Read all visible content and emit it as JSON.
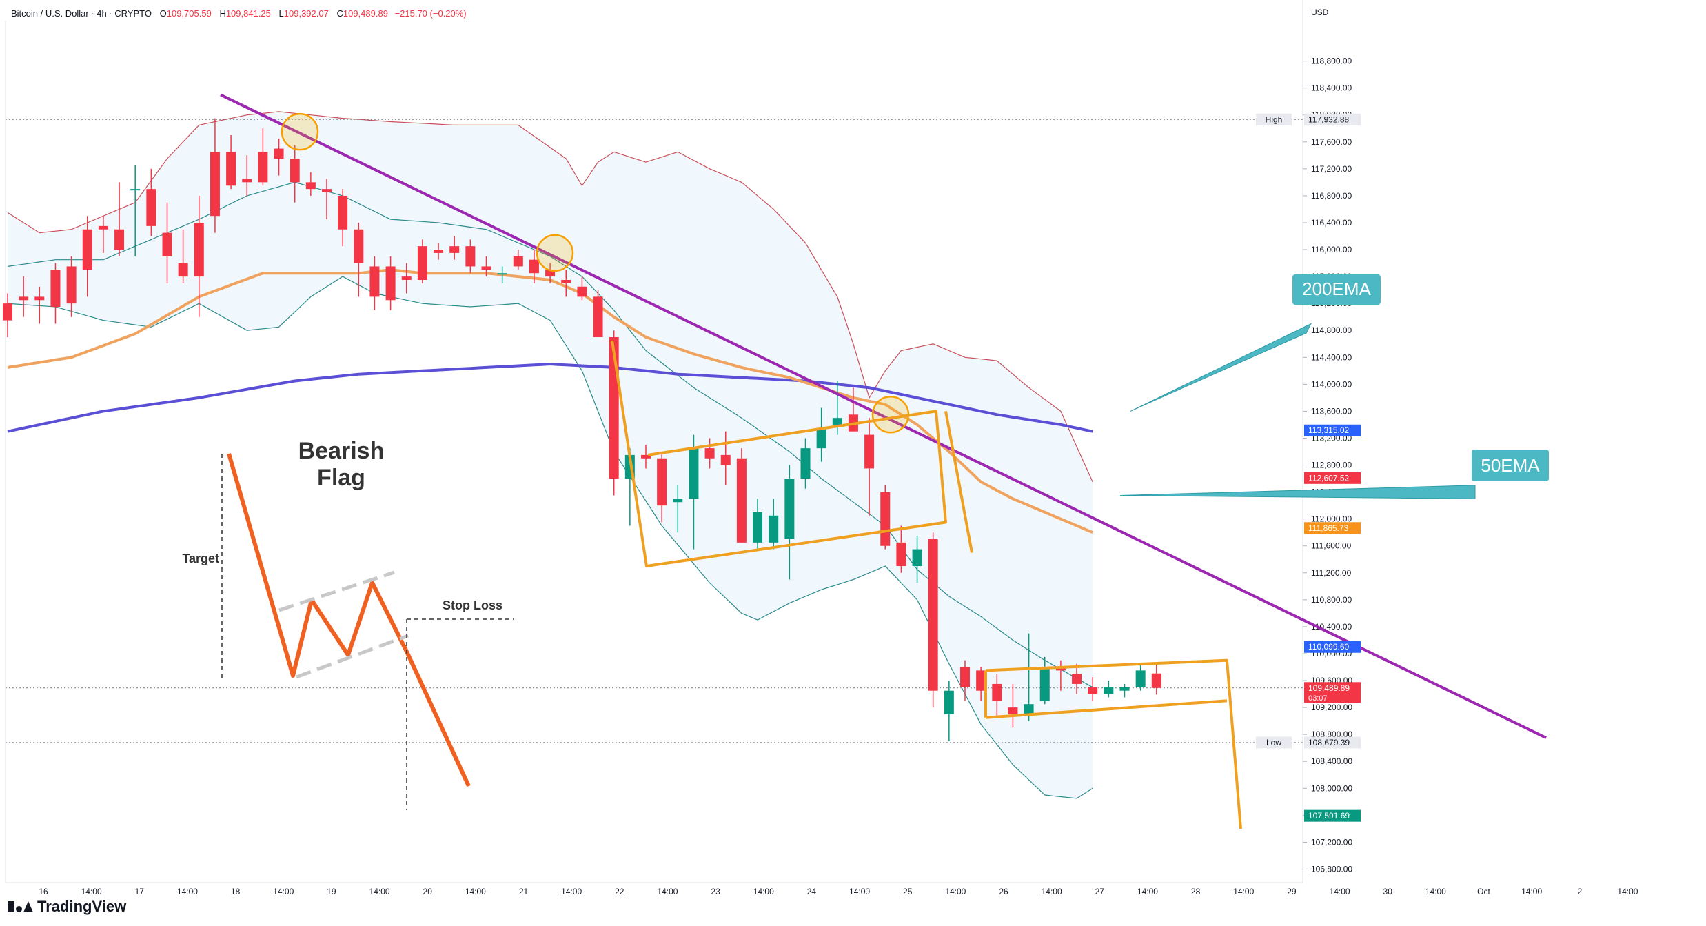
{
  "header": {
    "symbol": "Bitcoin / U.S. Dollar · 4h · CRYPTO",
    "o_label": "O",
    "o_value": "109,705.59",
    "h_label": "H",
    "h_value": "109,841.25",
    "l_label": "L",
    "l_value": "109,392.07",
    "c_label": "C",
    "c_value": "109,489.89",
    "change": "−215.70 (−0.20%)"
  },
  "brand": {
    "name": "TradingView"
  },
  "colors": {
    "bull": "#089981",
    "bear": "#f23645",
    "ema200": "#5b4fd6",
    "ema50": "#f0a35e",
    "trendline": "#9c27b0",
    "bb_upper": "#c9505a",
    "bb_basis": "#2b8a8a",
    "flag": "#f0a020",
    "callout": "#4cb8c4",
    "example": "#f06020"
  },
  "chart_data": {
    "type": "candlestick",
    "currency": "USD",
    "y_axis": {
      "min": 106600,
      "max": 119400,
      "ticks": [
        "106,800.00",
        "107,200.00",
        "107,600.00",
        "108,000.00",
        "108,400.00",
        "108,800.00",
        "109,200.00",
        "109,600.00",
        "110,000.00",
        "110,400.00",
        "110,800.00",
        "111,200.00",
        "111,600.00",
        "112,000.00",
        "112,400.00",
        "112,800.00",
        "113,200.00",
        "113,600.00",
        "114,000.00",
        "114,400.00",
        "114,800.00",
        "115,200.00",
        "115,600.00",
        "116,000.00",
        "116,400.00",
        "116,800.00",
        "117,200.00",
        "117,600.00",
        "118,000.00",
        "118,400.00",
        "118,800.00"
      ]
    },
    "x_axis": {
      "labels": [
        "16",
        "14:00",
        "17",
        "14:00",
        "18",
        "14:00",
        "19",
        "14:00",
        "20",
        "14:00",
        "21",
        "14:00",
        "22",
        "14:00",
        "23",
        "14:00",
        "24",
        "14:00",
        "25",
        "14:00",
        "26",
        "14:00",
        "27",
        "14:00",
        "28",
        "14:00",
        "29",
        "14:00",
        "30",
        "14:00",
        "Oct",
        "14:00",
        "2",
        "14:00"
      ]
    },
    "price_labels": [
      {
        "text": "High",
        "value": "117,932.88",
        "price": 117932.88,
        "color": "#e8eaf0",
        "text_color": "#131722"
      },
      {
        "text": "",
        "value": "113,315.02",
        "price": 113315.02,
        "color": "#2962ff",
        "text_color": "#ffffff"
      },
      {
        "text": "",
        "value": "112,607.52",
        "price": 112607.52,
        "color": "#f23645",
        "text_color": "#ffffff"
      },
      {
        "text": "",
        "value": "111,865.73",
        "price": 111865.73,
        "color": "#f7931a",
        "text_color": "#ffffff"
      },
      {
        "text": "",
        "value": "110,099.60",
        "price": 110099.6,
        "color": "#2962ff",
        "text_color": "#ffffff"
      },
      {
        "text": "",
        "value": "109,489.89",
        "price": 109489.89,
        "color": "#f23645",
        "text_color": "#ffffff",
        "sub": "03:07"
      },
      {
        "text": "Low",
        "value": "108,679.39",
        "price": 108679.39,
        "color": "#e8eaf0",
        "text_color": "#131722"
      },
      {
        "text": "",
        "value": "107,591.69",
        "price": 107591.69,
        "color": "#089981",
        "text_color": "#ffffff"
      }
    ],
    "candles": [
      [
        115200,
        115350,
        114700,
        114950
      ],
      [
        115300,
        115600,
        115000,
        115250
      ],
      [
        115300,
        115450,
        114900,
        115250
      ],
      [
        115700,
        115800,
        114900,
        115150
      ],
      [
        115750,
        115900,
        115000,
        115200
      ],
      [
        116300,
        116500,
        115300,
        115700
      ],
      [
        116350,
        116500,
        115950,
        116300
      ],
      [
        116300,
        117000,
        115900,
        116000
      ],
      [
        116900,
        117250,
        115900,
        116900
      ],
      [
        116900,
        117200,
        116200,
        116350
      ],
      [
        116250,
        116700,
        115500,
        115900
      ],
      [
        115800,
        116300,
        115500,
        115600
      ],
      [
        116400,
        116800,
        115000,
        115600
      ],
      [
        117450,
        117950,
        116250,
        116500
      ],
      [
        117450,
        117700,
        116900,
        116950
      ],
      [
        117050,
        117400,
        116800,
        117000
      ],
      [
        117450,
        117800,
        116950,
        117000
      ],
      [
        117500,
        117650,
        117100,
        117350
      ],
      [
        117350,
        117550,
        116700,
        117000
      ],
      [
        117000,
        117150,
        116800,
        116900
      ],
      [
        116900,
        117050,
        116450,
        116850
      ],
      [
        116800,
        116900,
        116050,
        116300
      ],
      [
        116300,
        116400,
        115300,
        115800
      ],
      [
        115750,
        115900,
        115100,
        115300
      ],
      [
        115750,
        115900,
        115100,
        115250
      ],
      [
        115600,
        115800,
        115350,
        115550
      ],
      [
        116050,
        116150,
        115500,
        115550
      ],
      [
        116000,
        116100,
        115850,
        115950
      ],
      [
        116050,
        116200,
        115850,
        115950
      ],
      [
        116050,
        116150,
        115650,
        115750
      ],
      [
        115750,
        115900,
        115600,
        115700
      ],
      [
        115650,
        115750,
        115500,
        115650
      ],
      [
        115900,
        116000,
        115700,
        115750
      ],
      [
        115850,
        116000,
        115500,
        115650
      ],
      [
        115700,
        115800,
        115500,
        115600
      ],
      [
        115550,
        115700,
        115300,
        115500
      ],
      [
        115450,
        115600,
        115250,
        115300
      ],
      [
        115300,
        115400,
        114700,
        114700
      ],
      [
        114700,
        114800,
        112350,
        112600
      ],
      [
        112600,
        113050,
        111900,
        112950
      ],
      [
        112950,
        113100,
        112750,
        112900
      ],
      [
        112900,
        113000,
        111950,
        112200
      ],
      [
        112250,
        112500,
        111800,
        112300
      ],
      [
        112300,
        113250,
        111550,
        113050
      ],
      [
        113050,
        113200,
        112750,
        112900
      ],
      [
        112950,
        113300,
        112500,
        112800
      ],
      [
        112900,
        113050,
        111650,
        111650
      ],
      [
        111650,
        112300,
        111550,
        112100
      ],
      [
        111650,
        112300,
        111550,
        112050
      ],
      [
        111700,
        112800,
        111100,
        112600
      ],
      [
        112600,
        113200,
        112450,
        113050
      ],
      [
        113050,
        113650,
        112850,
        113350
      ],
      [
        113400,
        114050,
        113250,
        113500
      ],
      [
        113550,
        113950,
        113350,
        113300
      ],
      [
        113250,
        113500,
        112050,
        112750
      ],
      [
        112400,
        112500,
        111550,
        111600
      ],
      [
        111650,
        111900,
        111200,
        111300
      ],
      [
        111300,
        111750,
        111050,
        111550
      ],
      [
        111700,
        111800,
        109200,
        109450
      ],
      [
        109100,
        109600,
        108700,
        109450
      ],
      [
        109800,
        109900,
        109300,
        109500
      ],
      [
        109750,
        109800,
        109300,
        109450
      ],
      [
        109550,
        109700,
        109050,
        109300
      ],
      [
        109200,
        109550,
        108900,
        109100
      ],
      [
        109100,
        110300,
        109000,
        109250
      ],
      [
        109300,
        109950,
        109250,
        109800
      ],
      [
        109800,
        109900,
        109450,
        109750
      ],
      [
        109700,
        109850,
        109400,
        109550
      ],
      [
        109500,
        109650,
        109300,
        109400
      ],
      [
        109400,
        109600,
        109350,
        109500
      ],
      [
        109450,
        109550,
        109350,
        109500
      ],
      [
        109500,
        109850,
        109450,
        109750
      ],
      [
        109705.59,
        109841.25,
        109392.07,
        109489.89
      ]
    ],
    "overlays": {
      "ema_200_label": "200EMA",
      "ema_50_label": "50EMA",
      "pattern_title": "Bearish\nFlag",
      "pattern_title_line1": "Bearish",
      "pattern_title_line2": "Flag",
      "target_label": "Target",
      "stop_loss_label": "Stop Loss"
    },
    "legend": "none",
    "grid": true
  }
}
